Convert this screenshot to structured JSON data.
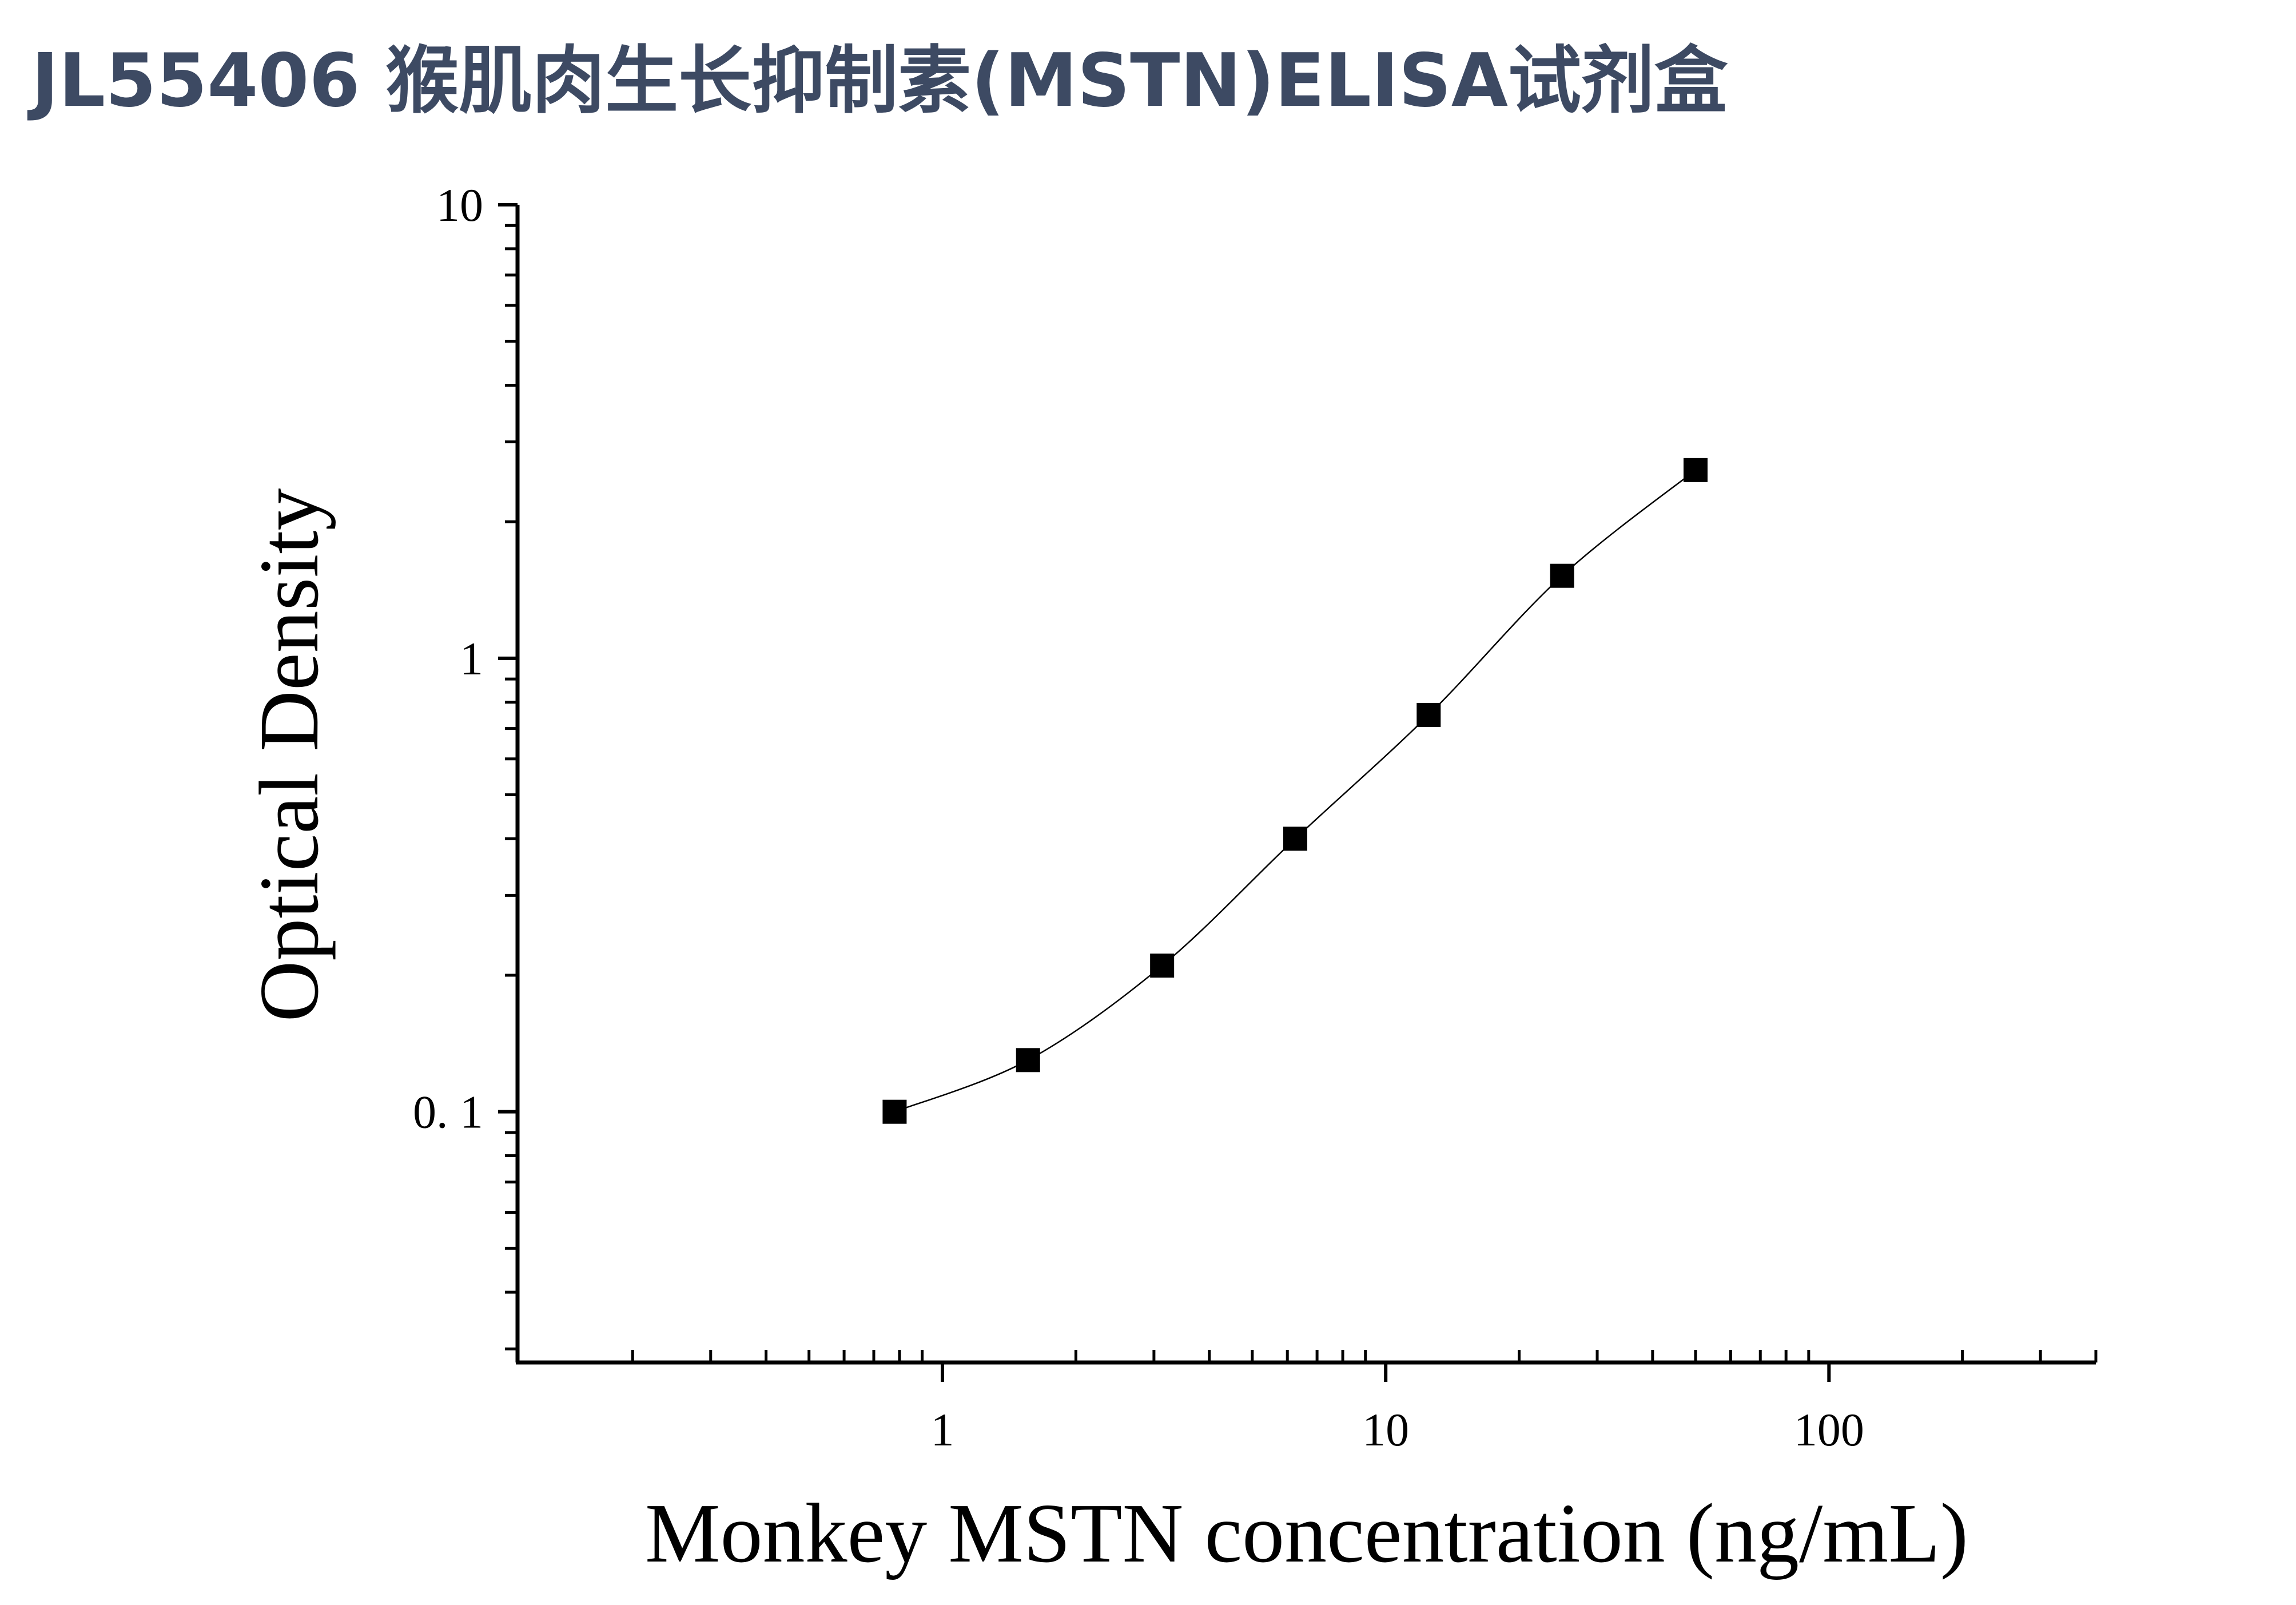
{
  "chart_data": {
    "type": "scatter",
    "title": "JL55406 猴肌肉生长抑制素(MSTN)ELISA试剂盒",
    "xlabel": "Monkey MSTN concentration (ng/mL)",
    "ylabel": "Optical Density",
    "x_scale": "log",
    "y_scale": "log",
    "xlim": [
      0.11,
      400
    ],
    "ylim": [
      0.028,
      10
    ],
    "x_ticks": [
      {
        "value": 1,
        "label": "1"
      },
      {
        "value": 10,
        "label": "10"
      },
      {
        "value": 100,
        "label": "100"
      }
    ],
    "y_ticks": [
      {
        "value": 0.1,
        "label": "0. 1"
      },
      {
        "value": 1,
        "label": "1"
      },
      {
        "value": 10,
        "label": "10"
      }
    ],
    "grid": false,
    "legend": "none",
    "series": [
      {
        "marker": "square",
        "color": "#000000",
        "x": [
          0.78,
          1.56,
          3.13,
          6.25,
          12.5,
          25,
          50
        ],
        "y": [
          0.1,
          0.13,
          0.21,
          0.4,
          0.75,
          1.52,
          2.6
        ]
      }
    ],
    "fit": "smooth curve through points"
  }
}
